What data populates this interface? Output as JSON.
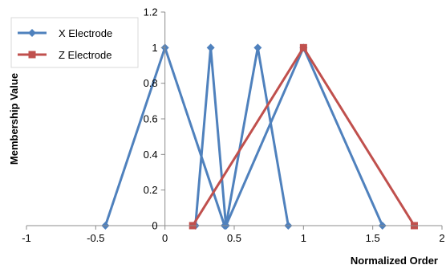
{
  "chart_data": {
    "type": "scatter",
    "title": "",
    "xlabel": "Normalized Order",
    "ylabel": "Membership Value",
    "xlim": [
      -1,
      2
    ],
    "ylim": [
      0,
      1.2
    ],
    "xticks": [
      "-1",
      "-0.5",
      "0",
      "0.5",
      "1",
      "1.5",
      "2"
    ],
    "yticks": [
      "0",
      "0.2",
      "0.4",
      "0.6",
      "0.8",
      "1",
      "1.2"
    ],
    "grid": "horizontal-none",
    "legend_position": "top-left",
    "series": [
      {
        "name": "X Electrode",
        "color": "#4F81BD",
        "marker": "diamond",
        "segments": [
          [
            [
              -0.43,
              0
            ],
            [
              0,
              1
            ],
            [
              0.43,
              0
            ]
          ],
          [
            [
              0.22,
              0
            ],
            [
              0.33,
              1
            ],
            [
              0.44,
              0
            ]
          ],
          [
            [
              0.44,
              0
            ],
            [
              0.67,
              1
            ],
            [
              0.89,
              0
            ]
          ],
          [
            [
              0.44,
              0
            ],
            [
              1.0,
              1
            ],
            [
              1.57,
              0
            ]
          ]
        ]
      },
      {
        "name": "Z Electrode",
        "color": "#C0504D",
        "marker": "square",
        "segments": [
          [
            [
              0.2,
              0
            ],
            [
              1.0,
              1
            ],
            [
              1.8,
              0
            ]
          ]
        ]
      }
    ]
  }
}
